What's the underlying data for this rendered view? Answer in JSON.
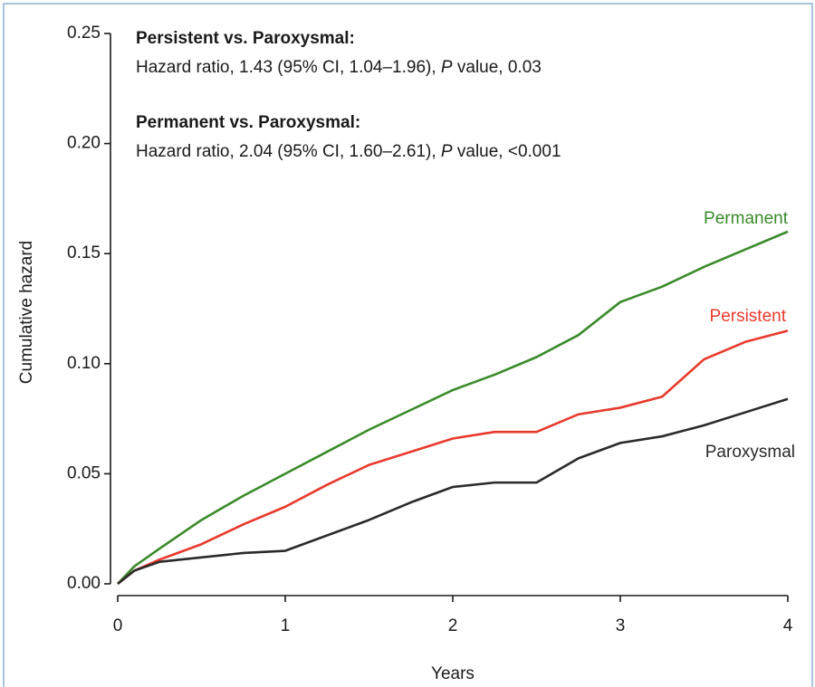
{
  "chart_data": {
    "type": "line",
    "x_label": "Years",
    "y_label": "Cumulative hazard",
    "xlim": [
      0,
      4
    ],
    "ylim": [
      0,
      0.25
    ],
    "xticks": [
      0,
      1,
      2,
      3,
      4
    ],
    "yticks": [
      {
        "value": 0,
        "label": "0.00"
      },
      0.05,
      {
        "value": 0.1,
        "label": "0.10"
      },
      0.15,
      {
        "value": 0.2,
        "label": "0.20"
      },
      0.25
    ],
    "x": [
      0,
      0.1,
      0.25,
      0.5,
      0.75,
      1,
      1.25,
      1.5,
      1.75,
      2,
      2.25,
      2.5,
      2.75,
      3,
      3.25,
      3.5,
      3.75,
      4
    ],
    "series": [
      {
        "name": "Permanent",
        "color": "#3a8a2a",
        "values": [
          0,
          0.008,
          0.016,
          0.029,
          0.04,
          0.05,
          0.06,
          0.07,
          0.079,
          0.088,
          0.095,
          0.103,
          0.113,
          0.128,
          0.135,
          0.144,
          0.152,
          0.16
        ]
      },
      {
        "name": "Persistent",
        "color": "#e8392c",
        "values": [
          0,
          0.006,
          0.011,
          0.018,
          0.027,
          0.035,
          0.045,
          0.054,
          0.06,
          0.066,
          0.069,
          0.069,
          0.077,
          0.08,
          0.085,
          0.102,
          0.11,
          0.115
        ]
      },
      {
        "name": "Paroxysmal",
        "color": "#2a2a2a",
        "values": [
          0,
          0.006,
          0.01,
          0.012,
          0.014,
          0.015,
          0.022,
          0.029,
          0.037,
          0.044,
          0.046,
          0.046,
          0.057,
          0.064,
          0.067,
          0.072,
          0.078,
          0.084
        ]
      }
    ],
    "annotations": [
      {
        "heading": "Persistent vs. Paroxysmal:",
        "text_before": "Hazard ratio, 1.43 (95% CI, 1.04–1.96), ",
        "emphasis": "P",
        "text_after": " value, 0.03"
      },
      {
        "heading": "Permanent vs. Paroxysmal:",
        "text_before": "Hazard ratio, 2.04 (95% CI, 1.60–2.61), ",
        "emphasis": "P",
        "text_after": " value, <0.001"
      }
    ]
  }
}
